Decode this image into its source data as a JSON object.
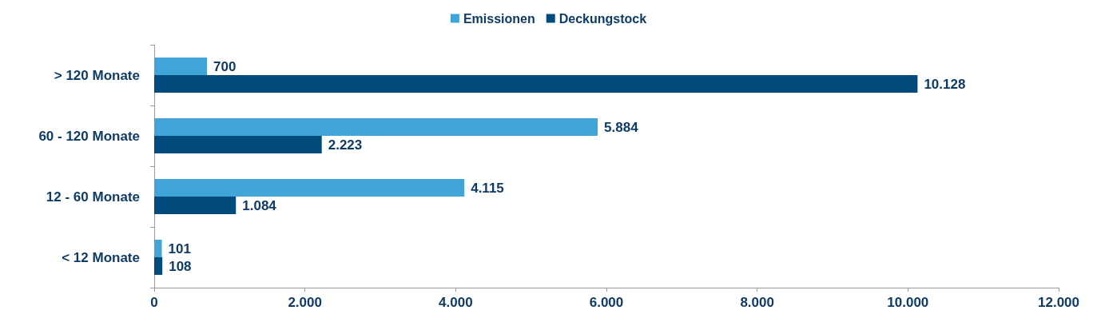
{
  "chart_data": {
    "type": "bar",
    "orientation": "horizontal",
    "categories": [
      "> 120 Monate",
      "60 - 120 Monate",
      "12 - 60 Monate",
      "< 12 Monate"
    ],
    "series": [
      {
        "name": "Emissionen",
        "color": "#41a5da",
        "values": [
          700,
          5884,
          4115,
          101
        ],
        "value_labels": [
          "700",
          "5.884",
          "4.115",
          "101"
        ]
      },
      {
        "name": "Deckungstock",
        "color": "#004a7c",
        "values": [
          10128,
          2223,
          1084,
          108
        ],
        "value_labels": [
          "10.128",
          "2.223",
          "1.084",
          "108"
        ]
      }
    ],
    "xlim": [
      0,
      12000
    ],
    "xticks": [
      {
        "value": 0,
        "label": "0"
      },
      {
        "value": 2000,
        "label": "2.000"
      },
      {
        "value": 4000,
        "label": "4.000"
      },
      {
        "value": 6000,
        "label": "6.000"
      },
      {
        "value": 8000,
        "label": "8.000"
      },
      {
        "value": 10000,
        "label": "10.000"
      },
      {
        "value": 12000,
        "label": "12.000"
      }
    ],
    "grid": false,
    "legend": "top"
  }
}
